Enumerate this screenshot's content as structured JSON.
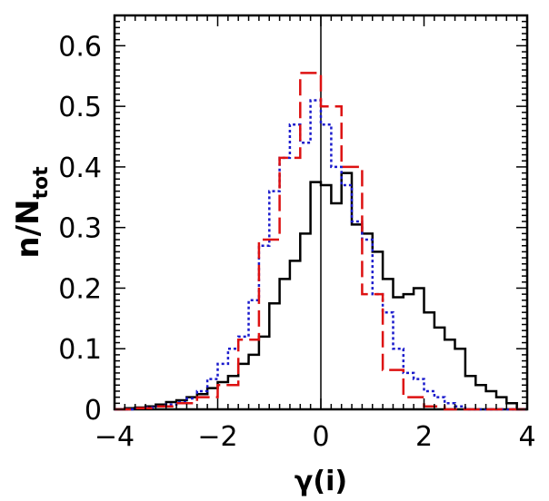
{
  "chart_data": {
    "type": "step-histogram",
    "xlabel": "γ(i)",
    "ylabel": {
      "base": "n/N",
      "subscript": "tot"
    },
    "xlim": [
      -4,
      4
    ],
    "ylim": [
      0,
      0.65
    ],
    "xticks": [
      -4,
      -2,
      0,
      2,
      4
    ],
    "xtick_labels": [
      "−4",
      "−2",
      "0",
      "2",
      "4"
    ],
    "yticks": [
      0,
      0.1,
      0.2,
      0.3,
      0.4,
      0.5,
      0.6
    ],
    "ytick_labels": [
      "0",
      "0.1",
      "0.2",
      "0.3",
      "0.4",
      "0.5",
      "0.6"
    ],
    "vertical_reference_line_x": 0,
    "grid": false,
    "series": [
      {
        "color": "#000000",
        "line_style": "solid",
        "bin_width": 0.2,
        "x": [
          -4.0,
          -3.8,
          -3.6,
          -3.4,
          -3.2,
          -3.0,
          -2.8,
          -2.6,
          -2.4,
          -2.2,
          -2.0,
          -1.8,
          -1.6,
          -1.4,
          -1.2,
          -1.0,
          -0.8,
          -0.6,
          -0.4,
          -0.2,
          0.0,
          0.2,
          0.4,
          0.6,
          0.8,
          1.0,
          1.2,
          1.4,
          1.6,
          1.8,
          2.0,
          2.2,
          2.4,
          2.6,
          2.8,
          3.0,
          3.2,
          3.4,
          3.6,
          3.8
        ],
        "values": [
          0.0,
          0.002,
          0.003,
          0.005,
          0.008,
          0.012,
          0.015,
          0.02,
          0.025,
          0.035,
          0.045,
          0.055,
          0.075,
          0.09,
          0.12,
          0.175,
          0.215,
          0.245,
          0.29,
          0.375,
          0.37,
          0.34,
          0.39,
          0.305,
          0.29,
          0.26,
          0.215,
          0.185,
          0.19,
          0.2,
          0.16,
          0.135,
          0.115,
          0.1,
          0.055,
          0.04,
          0.03,
          0.02,
          0.01,
          0.0
        ]
      },
      {
        "color": "#1a1acc",
        "line_style": "dotted",
        "bin_width": 0.2,
        "x": [
          -4.0,
          -3.8,
          -3.6,
          -3.4,
          -3.2,
          -3.0,
          -2.8,
          -2.6,
          -2.4,
          -2.2,
          -2.0,
          -1.8,
          -1.6,
          -1.4,
          -1.2,
          -1.0,
          -0.8,
          -0.6,
          -0.4,
          -0.2,
          0.0,
          0.2,
          0.4,
          0.6,
          0.8,
          1.0,
          1.2,
          1.4,
          1.6,
          1.8,
          2.0,
          2.2,
          2.4,
          2.6,
          2.8,
          3.0,
          3.2,
          3.4,
          3.6,
          3.8
        ],
        "values": [
          0.0,
          0.0,
          0.002,
          0.003,
          0.005,
          0.008,
          0.012,
          0.018,
          0.03,
          0.05,
          0.075,
          0.1,
          0.12,
          0.18,
          0.27,
          0.36,
          0.415,
          0.47,
          0.44,
          0.51,
          0.47,
          0.4,
          0.37,
          0.31,
          0.28,
          0.19,
          0.16,
          0.1,
          0.06,
          0.05,
          0.03,
          0.02,
          0.01,
          0.005,
          0.0,
          0.0,
          0.0,
          0.0,
          0.0,
          0.0
        ]
      },
      {
        "color": "#dd1111",
        "line_style": "dashed",
        "bin_width": 0.4,
        "x": [
          -4.0,
          -3.6,
          -3.2,
          -2.8,
          -2.4,
          -2.0,
          -1.6,
          -1.2,
          -0.8,
          -0.4,
          0.0,
          0.4,
          0.8,
          1.2,
          1.6,
          2.0,
          2.4,
          2.8,
          3.2,
          3.6
        ],
        "values": [
          0.0,
          0.002,
          0.005,
          0.01,
          0.02,
          0.04,
          0.115,
          0.28,
          0.415,
          0.555,
          0.5,
          0.4,
          0.19,
          0.065,
          0.02,
          0.005,
          0.0,
          0.0,
          0.0,
          0.0
        ]
      }
    ]
  }
}
